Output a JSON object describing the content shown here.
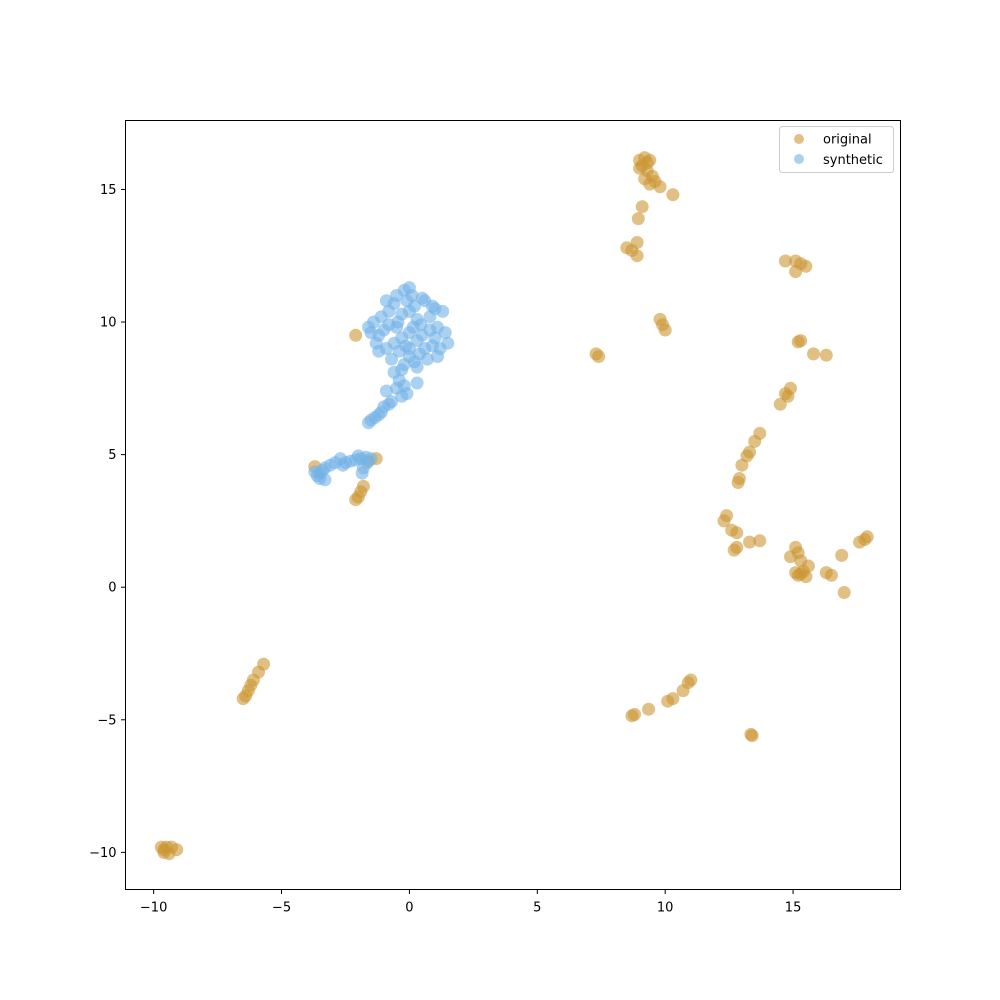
{
  "chart_data": {
    "type": "scatter",
    "title": "",
    "xlabel": "",
    "ylabel": "",
    "xlim": [
      -11.1,
      19.2
    ],
    "ylim": [
      -11.4,
      17.6
    ],
    "xticks": [
      -10,
      -5,
      0,
      5,
      10,
      15
    ],
    "yticks": [
      -10,
      -5,
      0,
      5,
      10,
      15
    ],
    "xtick_labels": [
      "−10",
      "−5",
      "0",
      "5",
      "10",
      "15"
    ],
    "ytick_labels": [
      "−10",
      "−5",
      "0",
      "5",
      "10",
      "15"
    ],
    "grid": false,
    "legend_position": "top-right",
    "series": [
      {
        "name": "original",
        "color": "#cc9633",
        "points": [
          [
            9.0,
            16.1
          ],
          [
            9.2,
            16.2
          ],
          [
            9.4,
            16.1
          ],
          [
            9.1,
            15.9
          ],
          [
            9.3,
            15.7
          ],
          [
            9.5,
            15.5
          ],
          [
            9.2,
            15.4
          ],
          [
            9.6,
            15.3
          ],
          [
            9.4,
            15.2
          ],
          [
            9.8,
            15.1
          ],
          [
            9.3,
            16.0
          ],
          [
            9.0,
            15.8
          ],
          [
            10.3,
            14.8
          ],
          [
            9.1,
            14.35
          ],
          [
            8.95,
            13.9
          ],
          [
            8.9,
            13.0
          ],
          [
            8.5,
            12.8
          ],
          [
            8.7,
            12.7
          ],
          [
            8.9,
            12.5
          ],
          [
            14.7,
            12.3
          ],
          [
            15.1,
            12.3
          ],
          [
            15.3,
            12.2
          ],
          [
            15.5,
            12.1
          ],
          [
            15.1,
            11.9
          ],
          [
            9.8,
            10.1
          ],
          [
            9.9,
            9.9
          ],
          [
            10.0,
            9.7
          ],
          [
            15.3,
            9.3
          ],
          [
            15.2,
            9.25
          ],
          [
            15.8,
            8.8
          ],
          [
            16.3,
            8.75
          ],
          [
            7.3,
            8.8
          ],
          [
            7.4,
            8.7
          ],
          [
            -2.1,
            9.5
          ],
          [
            14.9,
            7.5
          ],
          [
            14.7,
            7.3
          ],
          [
            14.8,
            7.2
          ],
          [
            14.5,
            6.9
          ],
          [
            13.7,
            5.8
          ],
          [
            13.5,
            5.5
          ],
          [
            13.3,
            5.1
          ],
          [
            13.2,
            4.95
          ],
          [
            13.0,
            4.6
          ],
          [
            12.9,
            4.1
          ],
          [
            12.85,
            3.95
          ],
          [
            -3.7,
            4.55
          ],
          [
            -1.3,
            4.85
          ],
          [
            -1.6,
            4.75
          ],
          [
            -1.8,
            3.8
          ],
          [
            -1.9,
            3.6
          ],
          [
            -2.0,
            3.4
          ],
          [
            -2.1,
            3.3
          ],
          [
            12.4,
            2.7
          ],
          [
            12.3,
            2.5
          ],
          [
            12.6,
            2.15
          ],
          [
            12.8,
            2.05
          ],
          [
            13.3,
            1.7
          ],
          [
            13.7,
            1.75
          ],
          [
            12.8,
            1.5
          ],
          [
            12.7,
            1.4
          ],
          [
            15.1,
            1.5
          ],
          [
            15.2,
            1.3
          ],
          [
            14.9,
            1.15
          ],
          [
            15.3,
            1.0
          ],
          [
            15.6,
            0.8
          ],
          [
            15.4,
            0.6
          ],
          [
            15.3,
            0.5
          ],
          [
            15.5,
            0.4
          ],
          [
            15.1,
            0.55
          ],
          [
            15.2,
            0.45
          ],
          [
            17.9,
            1.9
          ],
          [
            17.8,
            1.8
          ],
          [
            17.6,
            1.7
          ],
          [
            16.9,
            1.2
          ],
          [
            16.3,
            0.55
          ],
          [
            16.5,
            0.45
          ],
          [
            17.0,
            -0.2
          ],
          [
            -5.7,
            -2.9
          ],
          [
            -5.9,
            -3.2
          ],
          [
            -6.1,
            -3.5
          ],
          [
            -6.2,
            -3.7
          ],
          [
            -6.3,
            -3.9
          ],
          [
            -6.4,
            -4.1
          ],
          [
            -6.5,
            -4.2
          ],
          [
            11.0,
            -3.5
          ],
          [
            10.9,
            -3.6
          ],
          [
            10.7,
            -3.9
          ],
          [
            10.3,
            -4.2
          ],
          [
            10.1,
            -4.3
          ],
          [
            9.35,
            -4.6
          ],
          [
            8.8,
            -4.8
          ],
          [
            8.7,
            -4.85
          ],
          [
            13.4,
            -5.6
          ],
          [
            13.35,
            -5.55
          ],
          [
            -9.7,
            -9.8
          ],
          [
            -9.5,
            -9.8
          ],
          [
            -9.3,
            -9.8
          ],
          [
            -9.6,
            -10.0
          ],
          [
            -9.4,
            -10.05
          ],
          [
            -9.1,
            -9.9
          ],
          [
            -9.6,
            -9.9
          ]
        ]
      },
      {
        "name": "synthetic",
        "color": "#73b3e6",
        "points": [
          [
            0.0,
            9.6
          ],
          [
            -0.5,
            9.8
          ],
          [
            0.5,
            9.5
          ],
          [
            -0.3,
            10.3
          ],
          [
            0.3,
            10.1
          ],
          [
            -1.0,
            9.7
          ],
          [
            1.0,
            9.4
          ],
          [
            0.0,
            9.0
          ],
          [
            -0.6,
            9.2
          ],
          [
            0.6,
            9.0
          ],
          [
            -0.1,
            10.8
          ],
          [
            0.2,
            10.6
          ],
          [
            -0.8,
            10.4
          ],
          [
            0.8,
            10.2
          ],
          [
            -1.2,
            9.5
          ],
          [
            1.1,
            9.8
          ],
          [
            0.0,
            8.7
          ],
          [
            -0.4,
            8.9
          ],
          [
            0.4,
            8.8
          ],
          [
            -0.9,
            9.0
          ],
          [
            0.9,
            9.1
          ],
          [
            -0.2,
            11.2
          ],
          [
            0.1,
            11.0
          ],
          [
            -0.6,
            10.7
          ],
          [
            0.6,
            10.8
          ],
          [
            1.3,
            10.4
          ],
          [
            -1.4,
            10.0
          ],
          [
            -1.3,
            9.2
          ],
          [
            1.2,
            9.0
          ],
          [
            0.2,
            8.5
          ],
          [
            -0.2,
            8.4
          ],
          [
            -0.7,
            8.6
          ],
          [
            0.7,
            8.6
          ],
          [
            -0.3,
            9.4
          ],
          [
            0.3,
            9.3
          ],
          [
            -0.8,
            9.9
          ],
          [
            0.8,
            9.7
          ],
          [
            -1.1,
            10.2
          ],
          [
            1.0,
            10.5
          ],
          [
            0.0,
            10.4
          ],
          [
            -0.45,
            10.0
          ],
          [
            0.45,
            9.9
          ],
          [
            -0.15,
            9.1
          ],
          [
            0.15,
            9.8
          ],
          [
            -1.5,
            9.6
          ],
          [
            1.4,
            9.6
          ],
          [
            -0.9,
            10.8
          ],
          [
            0.9,
            10.6
          ],
          [
            -1.2,
            8.9
          ],
          [
            1.1,
            8.7
          ],
          [
            0.5,
            10.9
          ],
          [
            -0.5,
            11.0
          ],
          [
            0.0,
            11.3
          ],
          [
            -1.6,
            9.8
          ],
          [
            1.5,
            9.2
          ],
          [
            -0.3,
            8.2
          ],
          [
            0.3,
            8.3
          ],
          [
            -0.6,
            8.1
          ],
          [
            -0.4,
            7.8
          ],
          [
            -0.2,
            7.6
          ],
          [
            -0.5,
            7.5
          ],
          [
            -0.9,
            7.4
          ],
          [
            -0.1,
            7.3
          ],
          [
            -0.3,
            7.2
          ],
          [
            0.3,
            7.7
          ],
          [
            -0.7,
            7.0
          ],
          [
            -0.8,
            6.9
          ],
          [
            -1.0,
            6.8
          ],
          [
            -1.1,
            6.6
          ],
          [
            -1.2,
            6.5
          ],
          [
            -1.35,
            6.4
          ],
          [
            -1.5,
            6.3
          ],
          [
            -1.6,
            6.2
          ],
          [
            -1.7,
            4.9
          ],
          [
            -1.9,
            4.85
          ],
          [
            -2.1,
            4.8
          ],
          [
            -2.3,
            4.75
          ],
          [
            -2.5,
            4.7
          ],
          [
            -2.7,
            4.85
          ],
          [
            -2.9,
            4.7
          ],
          [
            -3.1,
            4.6
          ],
          [
            -3.3,
            4.5
          ],
          [
            -3.4,
            4.4
          ],
          [
            -3.5,
            4.3
          ],
          [
            -3.6,
            4.2
          ],
          [
            -3.7,
            4.35
          ],
          [
            -3.5,
            4.1
          ],
          [
            -3.3,
            4.05
          ],
          [
            -2.6,
            4.6
          ],
          [
            -1.8,
            4.5
          ],
          [
            -1.85,
            4.3
          ],
          [
            -1.5,
            4.85
          ],
          [
            -1.65,
            4.7
          ],
          [
            -2.0,
            4.95
          ]
        ]
      }
    ]
  }
}
